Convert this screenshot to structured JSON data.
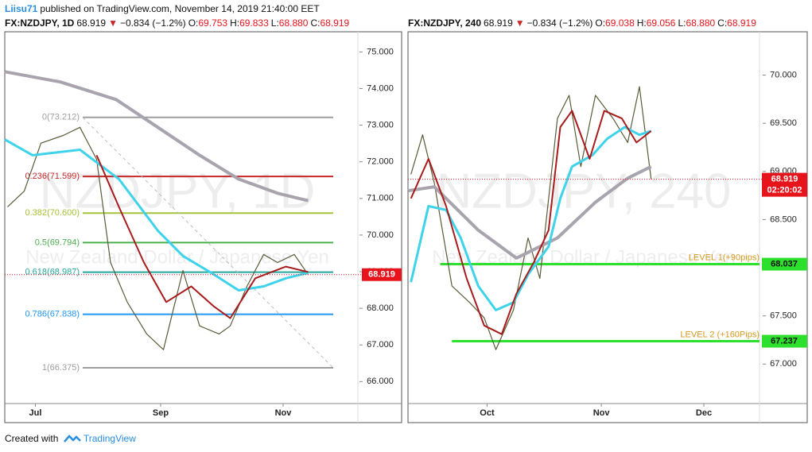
{
  "header": {
    "author": "Liisu71",
    "published": "published on TradingView.com, November 14, 2019 21:40:00 EET"
  },
  "footer": {
    "created": "Created with",
    "brand": "TradingView"
  },
  "chart_data": [
    {
      "type": "line",
      "symbol": "FX:NZDJPY, 1D",
      "last": "68.919",
      "change": "−0.834 (−1.2%)",
      "ohlc": [
        {
          "key": "O:",
          "value": "69.753"
        },
        {
          "key": "H:",
          "value": "69.833"
        },
        {
          "key": "L:",
          "value": "68.880"
        },
        {
          "key": "C:",
          "value": "68.919"
        }
      ],
      "watermark": "NZDJPY, 1D",
      "watermark_sub": "New Zealand Dollar / Japanese Yen",
      "xlim": [
        0,
        124
      ],
      "xticks": [
        {
          "value": 11,
          "label": "Jul"
        },
        {
          "value": 56,
          "label": "Sep"
        },
        {
          "value": 100,
          "label": "Nov"
        }
      ],
      "ylim": [
        65.4,
        75.55
      ],
      "yticks": [
        {
          "value": 66,
          "label": "66.000"
        },
        {
          "value": 67,
          "label": "67.000"
        },
        {
          "value": 68,
          "label": "68.000"
        },
        {
          "value": 69,
          "label": "69.000"
        },
        {
          "value": 70,
          "label": "70.000"
        },
        {
          "value": 71,
          "label": "71.000"
        },
        {
          "value": 72,
          "label": "72.000"
        },
        {
          "value": 73,
          "label": "73.000"
        },
        {
          "value": 74,
          "label": "74.000"
        },
        {
          "value": 75,
          "label": "75.000"
        }
      ],
      "series": [
        {
          "color": "#5b5b3a",
          "width": 1.2,
          "x": [
            1,
            7,
            13,
            21,
            27,
            33,
            38,
            44,
            51,
            57,
            64,
            70,
            77,
            81,
            87,
            93,
            98,
            104,
            109
          ],
          "values": [
            70.77,
            71.2,
            72.51,
            72.72,
            72.94,
            72.07,
            69.25,
            68.17,
            67.3,
            66.87,
            69.03,
            67.52,
            67.3,
            67.52,
            68.6,
            69.47,
            69.25,
            69.47,
            68.92
          ]
        },
        {
          "color": "#a9a3ad",
          "width": 4,
          "x": [
            0,
            20,
            40,
            55,
            70,
            84,
            98,
            109
          ],
          "values": [
            74.46,
            74.18,
            73.7,
            72.94,
            72.18,
            71.53,
            71.14,
            70.94
          ]
        },
        {
          "color": "#3ed3ea",
          "width": 3,
          "x": [
            0,
            10,
            27,
            41,
            55,
            64,
            75,
            84,
            93,
            101,
            109
          ],
          "values": [
            72.61,
            72.18,
            72.33,
            71.53,
            70.12,
            69.43,
            68.93,
            68.49,
            68.6,
            68.82,
            68.97
          ]
        },
        {
          "color": "#a81c1c",
          "width": 2,
          "x": [
            33,
            41,
            50,
            58,
            67,
            75,
            81,
            90,
            101,
            109
          ],
          "values": [
            72.18,
            70.77,
            69.25,
            68.17,
            68.6,
            68.06,
            67.73,
            68.82,
            69.14,
            68.99
          ]
        }
      ],
      "trendline": {
        "x": [
          28,
          118
        ],
        "values": [
          73.212,
          66.375
        ]
      },
      "levels": [
        {
          "label": "0(73.212)",
          "value": 73.212,
          "color": "#9e9e9e",
          "x": [
            28,
            118
          ]
        },
        {
          "label": "0.236(71.599)",
          "value": 71.599,
          "color": "#c62828",
          "x": [
            28,
            118
          ]
        },
        {
          "label": "0.382(70.600)",
          "value": 70.6,
          "color": "#a5c23a",
          "x": [
            28,
            118
          ]
        },
        {
          "label": "0.5(69.794)",
          "value": 69.794,
          "color": "#4caf50",
          "x": [
            28,
            118
          ]
        },
        {
          "label": "0.618(68.987)",
          "value": 68.987,
          "color": "#26a69a",
          "x": [
            28,
            118
          ]
        },
        {
          "label": "0.786(67.838)",
          "value": 67.838,
          "color": "#2196f3",
          "x": [
            28,
            118
          ]
        },
        {
          "label": "1(66.375)",
          "value": 66.375,
          "color": "#9e9e9e",
          "x": [
            28,
            118
          ]
        }
      ],
      "last_price": {
        "value": 68.919,
        "color": "#e8141b"
      }
    },
    {
      "type": "line",
      "symbol": "FX:NZDJPY, 240",
      "last": "68.919",
      "change": "−0.834 (−1.2%)",
      "ohlc": [
        {
          "key": "O:",
          "value": "69.038"
        },
        {
          "key": "H:",
          "value": "69.056"
        },
        {
          "key": "L:",
          "value": "68.880"
        },
        {
          "key": "C:",
          "value": "68.919"
        }
      ],
      "watermark": "NZDJPY, 240",
      "watermark_sub": "New Zealand Dollar / Japanese Yen",
      "xlim": [
        0,
        120
      ],
      "xticks": [
        {
          "value": 27,
          "label": "Oct"
        },
        {
          "value": 66,
          "label": "Nov"
        },
        {
          "value": 101,
          "label": "Dec"
        }
      ],
      "ylim": [
        66.59,
        70.45
      ],
      "yticks": [
        {
          "value": 67,
          "label": "67.000"
        },
        {
          "value": 67.5,
          "label": "67.500"
        },
        {
          "value": 68,
          "label": "68.000"
        },
        {
          "value": 68.5,
          "label": "68.500"
        },
        {
          "value": 69,
          "label": "69.000"
        },
        {
          "value": 69.5,
          "label": "69.500"
        },
        {
          "value": 70,
          "label": "70.000"
        }
      ],
      "series": [
        {
          "color": "#5b5b3a",
          "width": 1.2,
          "x": [
            1,
            5,
            9,
            15,
            21,
            26,
            30,
            36,
            41,
            45,
            51,
            55,
            59,
            64,
            70,
            75,
            79,
            83
          ],
          "values": [
            68.97,
            69.38,
            68.88,
            67.81,
            67.64,
            67.48,
            67.15,
            67.56,
            68.31,
            67.89,
            69.55,
            69.79,
            69.05,
            69.79,
            69.55,
            69.3,
            69.88,
            68.92
          ]
        },
        {
          "color": "#a9a3ad",
          "width": 4,
          "x": [
            0,
            9,
            24,
            37,
            51,
            64,
            75,
            83
          ],
          "values": [
            68.8,
            68.84,
            68.39,
            68.1,
            68.31,
            68.68,
            68.93,
            69.05
          ]
        },
        {
          "color": "#3ed3ea",
          "width": 3,
          "x": [
            1,
            7,
            13,
            18,
            24,
            30,
            36,
            41,
            48,
            52,
            56,
            63,
            68,
            74,
            79,
            83
          ],
          "values": [
            67.85,
            68.64,
            68.6,
            68.31,
            67.81,
            67.56,
            67.64,
            67.93,
            68.22,
            68.72,
            69.05,
            69.17,
            69.34,
            69.46,
            69.38,
            69.42
          ]
        },
        {
          "color": "#a81c1c",
          "width": 2,
          "x": [
            1,
            7,
            13,
            20,
            26,
            32,
            37,
            43,
            48,
            52,
            56,
            62,
            67,
            73,
            78,
            83
          ],
          "values": [
            68.72,
            69.13,
            68.64,
            67.89,
            67.4,
            67.31,
            67.73,
            68.06,
            68.39,
            69.46,
            69.63,
            69.13,
            69.63,
            69.55,
            69.3,
            69.42
          ]
        }
      ],
      "levels": [
        {
          "label": "LEVEL 1(+90pips)",
          "value": 68.037,
          "color": "#2ee02e",
          "x": [
            11,
            120
          ]
        },
        {
          "label": "LEVEL 2 (+160Pips)",
          "value": 67.237,
          "color": "#2ee02e",
          "x": [
            15,
            120
          ]
        }
      ],
      "last_price": {
        "value": 68.919,
        "color": "#e8141b"
      },
      "countdown": "02:20:02"
    }
  ]
}
